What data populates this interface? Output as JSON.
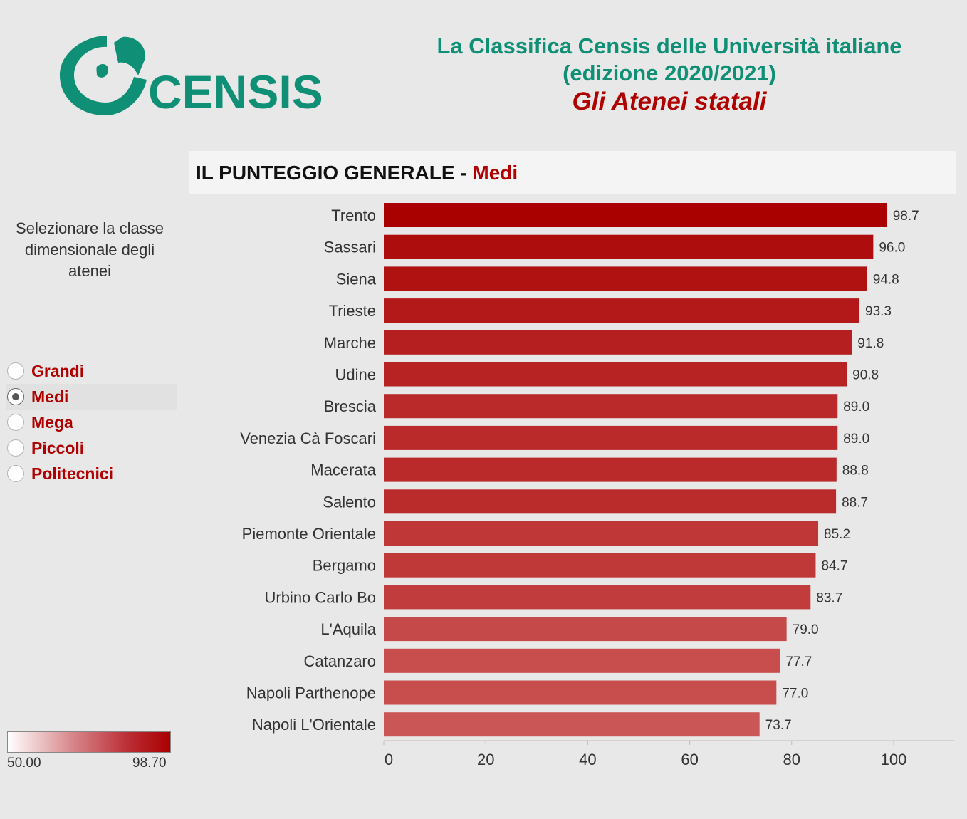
{
  "header": {
    "logo_text": "CENSIS",
    "title_line1": "La Classifica Censis delle Università italiane",
    "title_line2": "(edizione 2020/2021)",
    "subtitle": "Gli Atenei statali"
  },
  "chart_title": {
    "main": "IL PUNTEGGIO GENERALE - ",
    "class": "Medi"
  },
  "filter": {
    "label_lines": [
      "Selezionare la classe",
      "dimensionale degli",
      "atenei"
    ],
    "options": [
      "Grandi",
      "Medi",
      "Mega",
      "Piccoli",
      "Politecnici"
    ],
    "selected": "Medi"
  },
  "color_legend": {
    "min_label": "50.00",
    "max_label": "98.70"
  },
  "colors": {
    "brand_green": "#0f8f75",
    "accent_red": "#b00000",
    "bar_max": "#a90000",
    "bar_min": "#d06868"
  },
  "chart_data": {
    "type": "bar",
    "orientation": "horizontal",
    "categories": [
      "Trento",
      "Sassari",
      "Siena",
      "Trieste",
      "Marche",
      "Udine",
      "Brescia",
      "Venezia Cà Foscari",
      "Macerata",
      "Salento",
      "Piemonte Orientale",
      "Bergamo",
      "Urbino Carlo Bo",
      "L'Aquila",
      "Catanzaro",
      "Napoli Parthenope",
      "Napoli L'Orientale"
    ],
    "values": [
      98.7,
      96.0,
      94.8,
      93.3,
      91.8,
      90.8,
      89.0,
      89.0,
      88.8,
      88.7,
      85.2,
      84.7,
      83.7,
      79.0,
      77.7,
      77.0,
      73.7
    ],
    "value_labels": [
      "98.7",
      "96.0",
      "94.8",
      "93.3",
      "91.8",
      "90.8",
      "89.0",
      "89.0",
      "88.8",
      "88.7",
      "85.2",
      "84.7",
      "83.7",
      "79.0",
      "77.7",
      "77.0",
      "73.7"
    ],
    "x_ticks": [
      "0",
      "20",
      "40",
      "60",
      "80",
      "100"
    ],
    "xlim": [
      0,
      112
    ],
    "color_scale": [
      50.0,
      98.7
    ],
    "grid": false
  }
}
